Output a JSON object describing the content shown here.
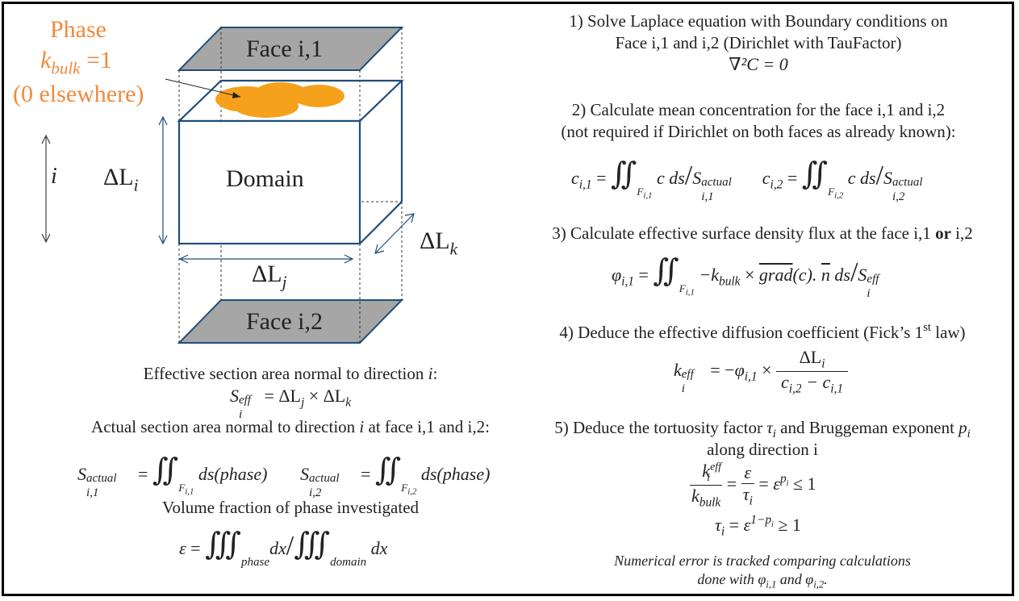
{
  "left": {
    "phase_label": "Phase",
    "kbulk_var": "k",
    "kbulk_sub": "bulk",
    "kbulk_value": "=1",
    "elsewhere": "(0 elsewhere)",
    "face_top": "Face i,1",
    "face_bottom": "Face i,2",
    "domain": "Domain",
    "dir_i": "i",
    "delta_li": "ΔL",
    "li_sub": "i",
    "lj_sub": "j",
    "lk_sub": "k",
    "eff_area_title": "Effective section area normal to direction",
    "eff_area_eq": "= ΔL",
    "eff_area_eq2": "× ΔL",
    "actual_area_title": "Actual section area normal to direction",
    "actual_area_title_tail": "at face i,1 and i,2:",
    "ds_phase": "ds(phase)",
    "volume_title": "Volume fraction of phase investigated",
    "phase_word": "phase",
    "domain_word": "domain"
  },
  "right": {
    "step1_line1": "1) Solve Laplace equation with Boundary conditions on",
    "step1_line2": "Face i,1 and i,2 (Dirichlet with TauFactor)",
    "laplace": "∇²C = 0",
    "step2_line1": "2) Calculate mean concentration for the face i,1 and i,2",
    "step2_line2": "(not required if Dirichlet on both faces as already known):",
    "step3_pre": "3) Calculate effective surface density flux at the face i,1",
    "step3_or": "or",
    "step3_post": "i,2",
    "step4_pre": "4) Deduce the effective diffusion coefficient (Fick’s 1",
    "step4_sup": "st",
    "step4_post": "law)",
    "step5_line1_pre": "5) Deduce the tortuosity factor",
    "step5_line1_mid": "and Bruggeman exponent",
    "step5_line2": "along direction i",
    "note_line1": "Numerical error is tracked comparing calculations",
    "note_line2_pre": "done with",
    "note_line2_mid": "and"
  },
  "colors": {
    "phase_orange": "#f5a11c",
    "phase_text": "#f08a3c",
    "box_blue": "#1f4e79",
    "face_gray": "#a6a6a6"
  }
}
